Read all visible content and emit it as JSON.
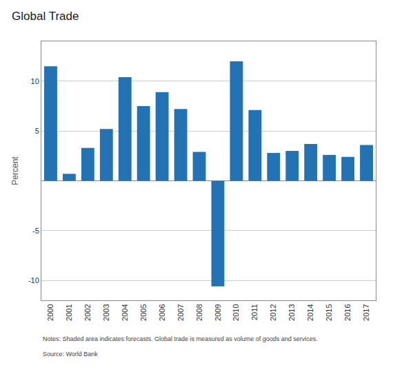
{
  "chart_data": {
    "type": "bar",
    "title": "Global Trade",
    "ylabel": "Percent",
    "categories": [
      "2000",
      "2001",
      "2002",
      "2003",
      "2004",
      "2005",
      "2006",
      "2007",
      "2008",
      "2009",
      "2010",
      "2011",
      "2012",
      "2013",
      "2014",
      "2015",
      "2016",
      "2017"
    ],
    "values": [
      11.5,
      0.7,
      3.3,
      5.2,
      10.4,
      7.5,
      8.9,
      7.2,
      2.9,
      -10.6,
      12.0,
      7.1,
      2.8,
      3.0,
      3.7,
      2.6,
      2.4,
      3.6
    ],
    "color": "#2272B4",
    "ylim": [
      -12,
      14
    ],
    "yticks": [
      -10,
      -5,
      5,
      10
    ],
    "grid": true,
    "annotations": [
      "Notes: Shaded area indicates forecasts. Global trade is measured as volume of goods and services.",
      "Source: World Bank"
    ]
  }
}
